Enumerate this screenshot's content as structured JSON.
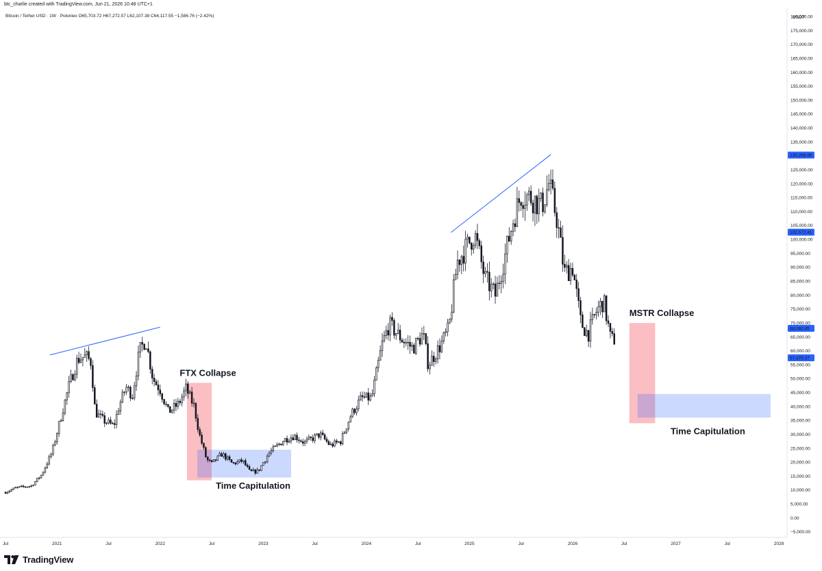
{
  "caption": "btc_charlie created with TradingView.com, Jun 21, 2026 10:48 UTC+1",
  "symbol_line": "Bitcoin / Tether USD · 1W · Poloniex  O65,703.72  H67,272.57  L62,107.38  C64,117.55  −1,586.76 (−2.42%)",
  "brand": "TradingView",
  "colors": {
    "candle": "#131722",
    "trendline": "#2962ff",
    "red_zone": "#f23645",
    "blue_zone": "#2962ff",
    "price_tag": "#2962ff"
  },
  "chart_data": {
    "type": "candlestick",
    "title": "",
    "unit_label": "USDT",
    "ylim": [
      -7000,
      183000
    ],
    "y_ticks": [
      "180,000.00",
      "175,000.00",
      "170,000.00",
      "165,000.00",
      "160,000.00",
      "155,000.00",
      "150,000.00",
      "145,000.00",
      "140,000.00",
      "135,000.00",
      "125,000.00",
      "120,000.00",
      "115,000.00",
      "110,000.00",
      "105,000.00",
      "100,000.00",
      "95,000.00",
      "90,000.00",
      "85,000.00",
      "80,000.00",
      "75,000.00",
      "70,000.00",
      "65,000.00",
      "60,000.00",
      "55,000.00",
      "50,000.00",
      "45,000.00",
      "40,000.00",
      "35,000.00",
      "30,000.00",
      "25,000.00",
      "20,000.00",
      "15,000.00",
      "10,000.00",
      "5,000.00",
      "0.00",
      "−5,000.00"
    ],
    "y_tick_values": [
      180000,
      175000,
      170000,
      165000,
      160000,
      155000,
      150000,
      145000,
      140000,
      135000,
      125000,
      120000,
      115000,
      110000,
      105000,
      100000,
      95000,
      90000,
      85000,
      80000,
      75000,
      70000,
      65000,
      60000,
      55000,
      50000,
      45000,
      40000,
      35000,
      30000,
      25000,
      20000,
      15000,
      10000,
      5000,
      0,
      -5000
    ],
    "x_ticks": [
      {
        "label": "Jul",
        "t": 2020.5
      },
      {
        "label": "2021",
        "t": 2021.0
      },
      {
        "label": "Jul",
        "t": 2021.5
      },
      {
        "label": "2022",
        "t": 2022.0
      },
      {
        "label": "Jul",
        "t": 2022.5
      },
      {
        "label": "2023",
        "t": 2023.0
      },
      {
        "label": "Jul",
        "t": 2023.5
      },
      {
        "label": "2024",
        "t": 2024.0
      },
      {
        "label": "Jul",
        "t": 2024.5
      },
      {
        "label": "2025",
        "t": 2025.0
      },
      {
        "label": "Jul",
        "t": 2025.5
      },
      {
        "label": "2026",
        "t": 2026.0
      },
      {
        "label": "Jul",
        "t": 2026.5
      },
      {
        "label": "2027",
        "t": 2027.0
      },
      {
        "label": "Jul",
        "t": 2027.5
      },
      {
        "label": "2028",
        "t": 2028.0
      }
    ],
    "price_path": [
      [
        2020.5,
        9200
      ],
      [
        2020.6,
        10800
      ],
      [
        2020.75,
        11500
      ],
      [
        2020.85,
        15500
      ],
      [
        2020.95,
        23500
      ],
      [
        2021.05,
        38000
      ],
      [
        2021.12,
        48000
      ],
      [
        2021.2,
        57000
      ],
      [
        2021.28,
        58000
      ],
      [
        2021.33,
        56000
      ],
      [
        2021.37,
        38000
      ],
      [
        2021.45,
        35000
      ],
      [
        2021.55,
        33000
      ],
      [
        2021.6,
        40000
      ],
      [
        2021.67,
        47000
      ],
      [
        2021.73,
        44000
      ],
      [
        2021.8,
        60000
      ],
      [
        2021.86,
        64000
      ],
      [
        2021.93,
        50000
      ],
      [
        2022.0,
        46000
      ],
      [
        2022.08,
        38000
      ],
      [
        2022.18,
        41000
      ],
      [
        2022.25,
        46500
      ],
      [
        2022.33,
        40000
      ],
      [
        2022.38,
        30000
      ],
      [
        2022.45,
        21000
      ],
      [
        2022.5,
        19500
      ],
      [
        2022.6,
        23000
      ],
      [
        2022.7,
        19500
      ],
      [
        2022.8,
        20500
      ],
      [
        2022.87,
        16500
      ],
      [
        2022.95,
        16800
      ],
      [
        2023.05,
        23000
      ],
      [
        2023.2,
        28000
      ],
      [
        2023.3,
        29500
      ],
      [
        2023.4,
        27000
      ],
      [
        2023.55,
        30000
      ],
      [
        2023.65,
        26000
      ],
      [
        2023.75,
        27500
      ],
      [
        2023.85,
        37000
      ],
      [
        2023.95,
        43000
      ],
      [
        2024.05,
        43000
      ],
      [
        2024.15,
        62000
      ],
      [
        2024.22,
        69500
      ],
      [
        2024.35,
        64000
      ],
      [
        2024.45,
        61000
      ],
      [
        2024.55,
        66000
      ],
      [
        2024.6,
        55000
      ],
      [
        2024.72,
        62000
      ],
      [
        2024.8,
        68000
      ],
      [
        2024.88,
        92000
      ],
      [
        2024.95,
        96000
      ],
      [
        2025.05,
        102000
      ],
      [
        2025.15,
        86000
      ],
      [
        2025.25,
        80000
      ],
      [
        2025.35,
        95000
      ],
      [
        2025.43,
        108000
      ],
      [
        2025.5,
        116000
      ],
      [
        2025.6,
        115000
      ],
      [
        2025.7,
        112000
      ],
      [
        2025.77,
        120000
      ],
      [
        2025.85,
        107000
      ],
      [
        2025.92,
        88000
      ],
      [
        2026.0,
        90000
      ],
      [
        2026.08,
        70000
      ],
      [
        2026.15,
        66000
      ],
      [
        2026.23,
        74000
      ],
      [
        2026.3,
        78000
      ],
      [
        2026.37,
        64000
      ],
      [
        2026.42,
        64117.55
      ]
    ],
    "trendlines": [
      {
        "from": [
          2020.93,
          58500
        ],
        "to": [
          2022.0,
          68500
        ]
      },
      {
        "from": [
          2024.82,
          102500
        ],
        "to": [
          2025.79,
          130500
        ]
      }
    ],
    "zones": [
      {
        "kind": "red",
        "t0": 2022.26,
        "t1": 2022.5,
        "p0": 13500,
        "p1": 48500
      },
      {
        "kind": "blue",
        "t0": 2022.36,
        "t1": 2023.27,
        "p0": 14500,
        "p1": 24500
      },
      {
        "kind": "red",
        "t0": 2026.55,
        "t1": 2026.8,
        "p0": 34000,
        "p1": 70000
      },
      {
        "kind": "blue",
        "t0": 2026.63,
        "t1": 2027.92,
        "p0": 36000,
        "p1": 44500
      }
    ],
    "annotations": [
      {
        "text": "FTX Collapse",
        "t": 2022.19,
        "p": 51000
      },
      {
        "text": "Time Capitulation",
        "t": 2022.54,
        "p": 10500
      },
      {
        "text": "MSTR Collapse",
        "t": 2026.55,
        "p": 72500
      },
      {
        "text": "Time Capitulation",
        "t": 2026.95,
        "p": 30000
      }
    ],
    "price_tags": [
      {
        "label": "130,268.66",
        "value": 130268.66
      },
      {
        "label": "102,572.41",
        "value": 102572.41
      },
      {
        "label": "68,060.85",
        "value": 68060.85
      },
      {
        "label": "57,475.37",
        "value": 57475.37
      }
    ]
  }
}
